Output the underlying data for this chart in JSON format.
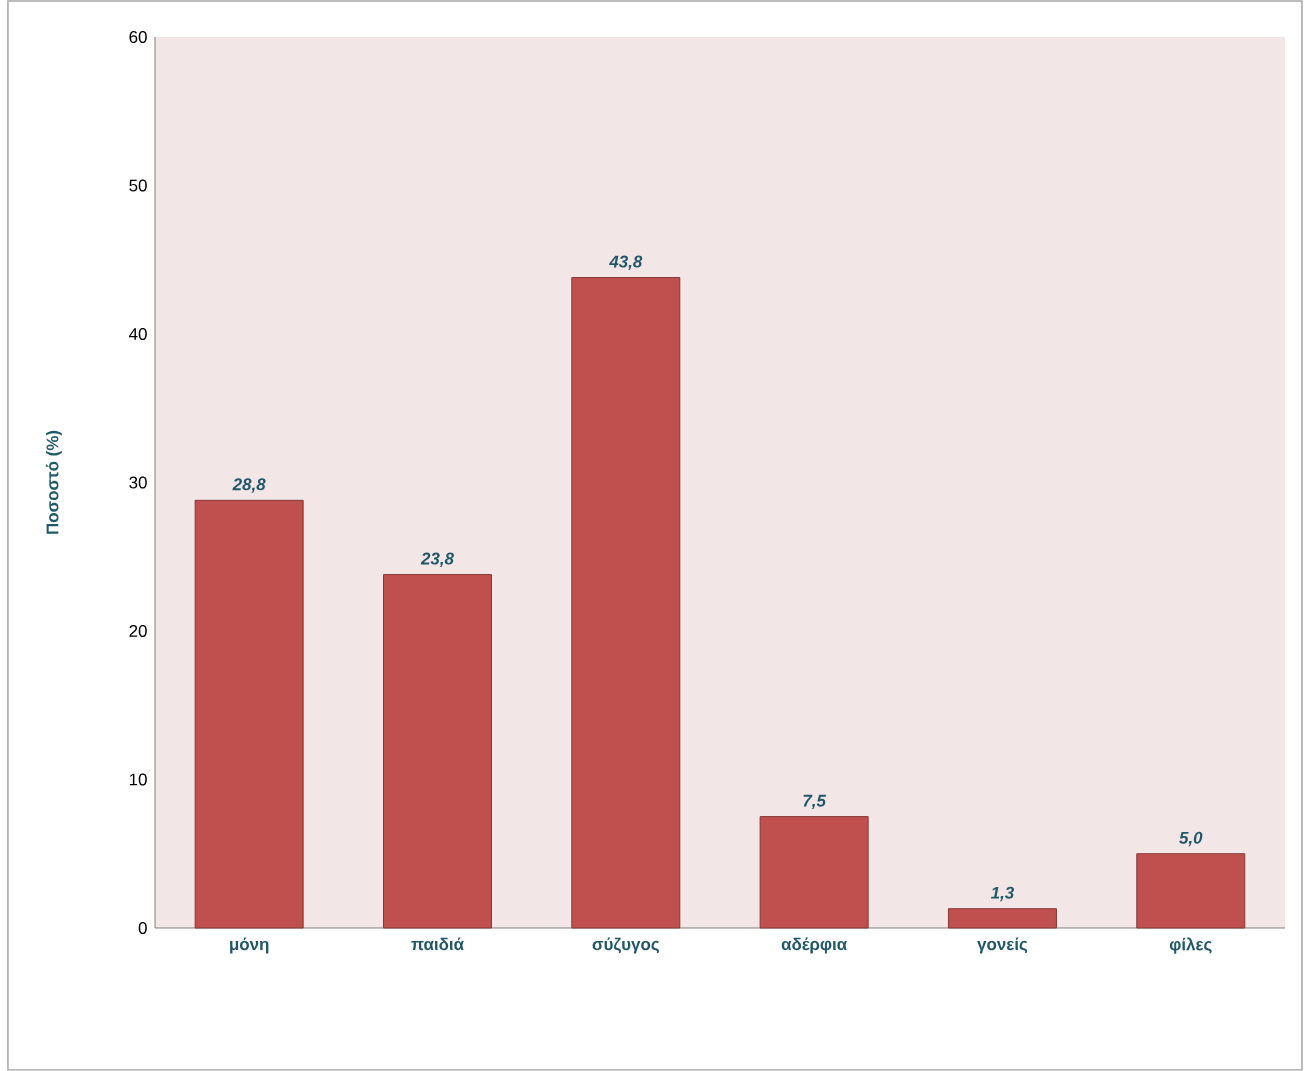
{
  "chart_data": {
    "type": "bar",
    "ylabel": "Ποσοστό (%)",
    "categories": [
      "μόνη",
      "παιδιά",
      "σύζυγος",
      "αδέρφια",
      "γονείς",
      "φίλες"
    ],
    "values": [
      28.8,
      23.8,
      43.8,
      7.5,
      1.3,
      5.0
    ],
    "value_labels": [
      "28,8",
      "23,8",
      "43,8",
      "7,5",
      "1,3",
      "5,0"
    ],
    "color": "#c0504d",
    "ylim": [
      0,
      60
    ],
    "yticks": [
      0,
      10,
      20,
      30,
      40,
      50,
      60
    ],
    "grid": false
  }
}
